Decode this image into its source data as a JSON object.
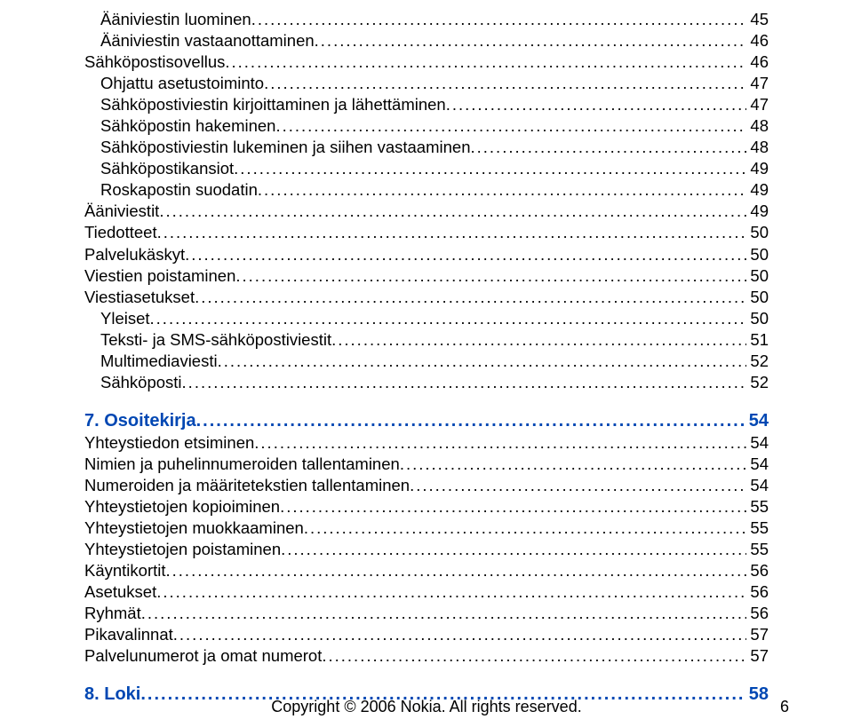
{
  "toc": [
    {
      "level": "lvl1",
      "label": "Ääniviestin luominen",
      "page": "45"
    },
    {
      "level": "lvl1",
      "label": "Ääniviestin vastaanottaminen",
      "page": "46"
    },
    {
      "level": "lvl0",
      "label": "Sähköpostisovellus",
      "page": "46"
    },
    {
      "level": "lvl1",
      "label": "Ohjattu asetustoiminto",
      "page": "47"
    },
    {
      "level": "lvl1",
      "label": "Sähköpostiviestin kirjoittaminen ja lähettäminen",
      "page": "47"
    },
    {
      "level": "lvl1",
      "label": "Sähköpostin hakeminen",
      "page": "48"
    },
    {
      "level": "lvl1",
      "label": "Sähköpostiviestin lukeminen ja siihen vastaaminen",
      "page": "48"
    },
    {
      "level": "lvl1",
      "label": "Sähköpostikansiot",
      "page": "49"
    },
    {
      "level": "lvl1",
      "label": "Roskapostin suodatin",
      "page": "49"
    },
    {
      "level": "lvl0",
      "label": "Ääniviestit",
      "page": "49"
    },
    {
      "level": "lvl0",
      "label": "Tiedotteet",
      "page": "50"
    },
    {
      "level": "lvl0",
      "label": "Palvelukäskyt",
      "page": "50"
    },
    {
      "level": "lvl0",
      "label": "Viestien poistaminen",
      "page": "50"
    },
    {
      "level": "lvl0",
      "label": "Viestiasetukset",
      "page": "50"
    },
    {
      "level": "lvl1",
      "label": "Yleiset",
      "page": "50"
    },
    {
      "level": "lvl1",
      "label": "Teksti- ja SMS-sähköpostiviestit",
      "page": "51"
    },
    {
      "level": "lvl1",
      "label": "Multimediaviesti",
      "page": "52"
    },
    {
      "level": "lvl1",
      "label": "Sähköposti",
      "page": "52"
    },
    {
      "spacer": true
    },
    {
      "level": "section",
      "label": "7. Osoitekirja",
      "page": "54"
    },
    {
      "level": "lvl0",
      "label": "Yhteystiedon etsiminen",
      "page": "54"
    },
    {
      "level": "lvl0",
      "label": "Nimien ja puhelinnumeroiden tallentaminen",
      "page": "54"
    },
    {
      "level": "lvl0",
      "label": "Numeroiden ja määritetekstien tallentaminen",
      "page": "54"
    },
    {
      "level": "lvl0",
      "label": "Yhteystietojen kopioiminen",
      "page": "55"
    },
    {
      "level": "lvl0",
      "label": "Yhteystietojen muokkaaminen",
      "page": "55"
    },
    {
      "level": "lvl0",
      "label": "Yhteystietojen poistaminen",
      "page": "55"
    },
    {
      "level": "lvl0",
      "label": "Käyntikortit",
      "page": "56"
    },
    {
      "level": "lvl0",
      "label": "Asetukset",
      "page": "56"
    },
    {
      "level": "lvl0",
      "label": "Ryhmät",
      "page": "56"
    },
    {
      "level": "lvl0",
      "label": "Pikavalinnat",
      "page": "57"
    },
    {
      "level": "lvl0",
      "label": "Palvelunumerot ja omat numerot",
      "page": "57"
    },
    {
      "spacer": true
    },
    {
      "level": "section",
      "label": "8. Loki",
      "page": "58"
    }
  ],
  "footer": "Copyright © 2006 Nokia. All rights reserved.",
  "pageNumber": "6"
}
